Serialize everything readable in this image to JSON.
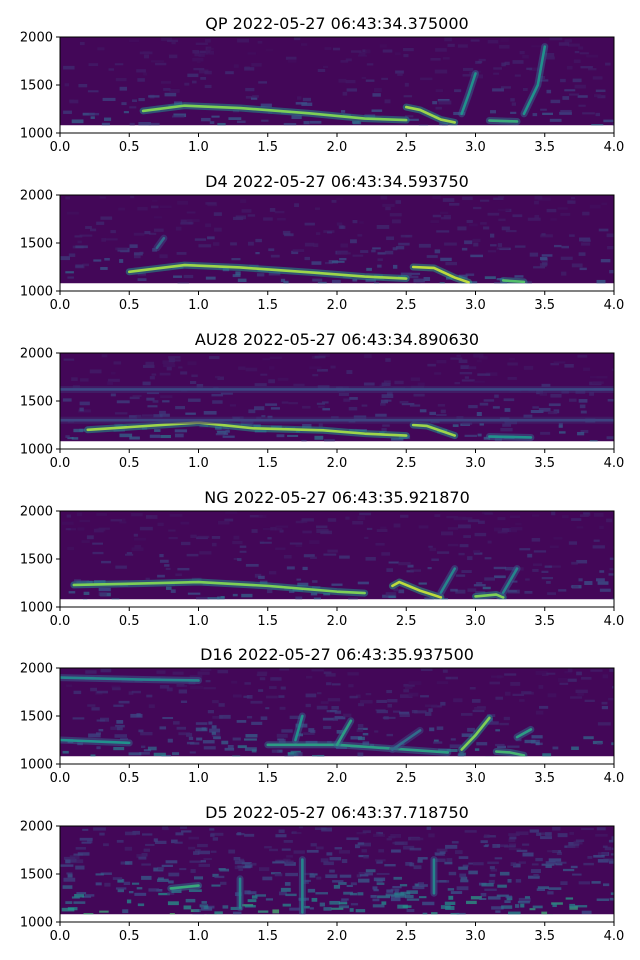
{
  "chart_data": [
    {
      "type": "heatmap",
      "title": "QP 2022-05-27 06:43:34.375000",
      "xlim": [
        0,
        4
      ],
      "ylim": [
        1000,
        2000
      ],
      "xticks": [
        "0.0",
        "0.5",
        "1.0",
        "1.5",
        "2.0",
        "2.5",
        "3.0",
        "3.5",
        "4.0"
      ],
      "yticks": [
        "1000",
        "1500",
        "2000"
      ],
      "data_ymin": 1080,
      "colormap": "viridis",
      "noise_level": 0.22,
      "tracks": [
        {
          "points": [
            [
              0.6,
              1230
            ],
            [
              0.9,
              1285
            ],
            [
              1.3,
              1260
            ],
            [
              1.8,
              1205
            ],
            [
              2.2,
              1150
            ],
            [
              2.5,
              1135
            ]
          ],
          "intensity": 0.8
        },
        {
          "points": [
            [
              2.5,
              1270
            ],
            [
              2.6,
              1240
            ],
            [
              2.75,
              1140
            ],
            [
              2.85,
              1110
            ]
          ],
          "intensity": 0.85
        },
        {
          "points": [
            [
              2.9,
              1200
            ],
            [
              2.95,
              1400
            ],
            [
              3.0,
              1620
            ]
          ],
          "intensity": 0.5
        },
        {
          "points": [
            [
              3.1,
              1130
            ],
            [
              3.3,
              1120
            ]
          ],
          "intensity": 0.6
        },
        {
          "points": [
            [
              3.35,
              1200
            ],
            [
              3.45,
              1500
            ],
            [
              3.5,
              1900
            ]
          ],
          "intensity": 0.5
        }
      ]
    },
    {
      "type": "heatmap",
      "title": "D4 2022-05-27 06:43:34.593750",
      "xlim": [
        0,
        4
      ],
      "ylim": [
        1000,
        2000
      ],
      "xticks": [
        "0.0",
        "0.5",
        "1.0",
        "1.5",
        "2.0",
        "2.5",
        "3.0",
        "3.5",
        "4.0"
      ],
      "yticks": [
        "1000",
        "1500",
        "2000"
      ],
      "data_ymin": 1080,
      "colormap": "viridis",
      "noise_level": 0.24,
      "tracks": [
        {
          "points": [
            [
              0.5,
              1200
            ],
            [
              0.9,
              1270
            ],
            [
              1.3,
              1245
            ],
            [
              1.8,
              1195
            ],
            [
              2.2,
              1150
            ],
            [
              2.5,
              1130
            ]
          ],
          "intensity": 0.85
        },
        {
          "points": [
            [
              2.55,
              1250
            ],
            [
              2.7,
              1240
            ],
            [
              2.85,
              1140
            ],
            [
              2.95,
              1090
            ]
          ],
          "intensity": 0.9
        },
        {
          "points": [
            [
              3.2,
              1110
            ],
            [
              3.35,
              1095
            ]
          ],
          "intensity": 0.7
        },
        {
          "points": [
            [
              0.7,
              1450
            ],
            [
              0.75,
              1550
            ]
          ],
          "intensity": 0.35
        }
      ]
    },
    {
      "type": "heatmap",
      "title": "AU28 2022-05-27 06:43:34.890630",
      "xlim": [
        0,
        4
      ],
      "ylim": [
        1000,
        2000
      ],
      "xticks": [
        "0.0",
        "0.5",
        "1.0",
        "1.5",
        "2.0",
        "2.5",
        "3.0",
        "3.5",
        "4.0"
      ],
      "yticks": [
        "1000",
        "1500",
        "2000"
      ],
      "data_ymin": 1080,
      "colormap": "viridis",
      "noise_level": 0.25,
      "tracks": [
        {
          "points": [
            [
              0.2,
              1200
            ],
            [
              1.0,
              1275
            ],
            [
              1.4,
              1215
            ],
            [
              1.9,
              1195
            ],
            [
              2.2,
              1160
            ],
            [
              2.5,
              1140
            ]
          ],
          "intensity": 0.85
        },
        {
          "points": [
            [
              2.55,
              1250
            ],
            [
              2.65,
              1240
            ],
            [
              2.85,
              1140
            ]
          ],
          "intensity": 0.85
        },
        {
          "points": [
            [
              3.1,
              1130
            ],
            [
              3.4,
              1120
            ]
          ],
          "intensity": 0.5
        },
        {
          "points": [
            [
              0.0,
              1620
            ],
            [
              4.0,
              1620
            ]
          ],
          "intensity": 0.22
        },
        {
          "points": [
            [
              0.0,
              1300
            ],
            [
              4.0,
              1300
            ]
          ],
          "intensity": 0.2
        }
      ]
    },
    {
      "type": "heatmap",
      "title": "NG 2022-05-27 06:43:35.921870",
      "xlim": [
        0,
        4
      ],
      "ylim": [
        1000,
        2000
      ],
      "xticks": [
        "0.0",
        "0.5",
        "1.0",
        "1.5",
        "2.0",
        "2.5",
        "3.0",
        "3.5",
        "4.0"
      ],
      "yticks": [
        "1000",
        "1500",
        "2000"
      ],
      "data_ymin": 1080,
      "colormap": "viridis",
      "noise_level": 0.24,
      "tracks": [
        {
          "points": [
            [
              0.1,
              1230
            ],
            [
              0.6,
              1245
            ],
            [
              1.0,
              1260
            ],
            [
              1.5,
              1220
            ],
            [
              2.0,
              1160
            ],
            [
              2.2,
              1145
            ]
          ],
          "intensity": 0.8
        },
        {
          "points": [
            [
              2.4,
              1220
            ],
            [
              2.45,
              1260
            ],
            [
              2.6,
              1170
            ],
            [
              2.75,
              1100
            ]
          ],
          "intensity": 0.9
        },
        {
          "points": [
            [
              2.75,
              1150
            ],
            [
              2.85,
              1400
            ]
          ],
          "intensity": 0.45
        },
        {
          "points": [
            [
              3.0,
              1110
            ],
            [
              3.15,
              1130
            ],
            [
              3.2,
              1100
            ]
          ],
          "intensity": 0.8
        },
        {
          "points": [
            [
              3.2,
              1150
            ],
            [
              3.3,
              1400
            ]
          ],
          "intensity": 0.45
        }
      ]
    },
    {
      "type": "heatmap",
      "title": "D16 2022-05-27 06:43:35.937500",
      "xlim": [
        0,
        4
      ],
      "ylim": [
        1000,
        2000
      ],
      "xticks": [
        "0.0",
        "0.5",
        "1.0",
        "1.5",
        "2.0",
        "2.5",
        "3.0",
        "3.5",
        "4.0"
      ],
      "yticks": [
        "1000",
        "1500",
        "2000"
      ],
      "data_ymin": 1080,
      "colormap": "viridis",
      "noise_level": 0.28,
      "tracks": [
        {
          "points": [
            [
              0.0,
              1900
            ],
            [
              0.6,
              1880
            ],
            [
              1.0,
              1870
            ]
          ],
          "intensity": 0.45
        },
        {
          "points": [
            [
              0.0,
              1250
            ],
            [
              0.5,
              1220
            ]
          ],
          "intensity": 0.5
        },
        {
          "points": [
            [
              1.5,
              1200
            ],
            [
              2.0,
              1200
            ],
            [
              2.5,
              1150
            ],
            [
              2.8,
              1120
            ]
          ],
          "intensity": 0.55
        },
        {
          "points": [
            [
              1.7,
              1250
            ],
            [
              1.75,
              1500
            ]
          ],
          "intensity": 0.5
        },
        {
          "points": [
            [
              2.0,
              1200
            ],
            [
              2.1,
              1450
            ]
          ],
          "intensity": 0.55
        },
        {
          "points": [
            [
              2.4,
              1150
            ],
            [
              2.6,
              1350
            ]
          ],
          "intensity": 0.35
        },
        {
          "points": [
            [
              2.9,
              1150
            ],
            [
              3.0,
              1300
            ],
            [
              3.1,
              1480
            ]
          ],
          "intensity": 0.8
        },
        {
          "points": [
            [
              3.15,
              1130
            ],
            [
              3.25,
              1120
            ],
            [
              3.35,
              1090
            ]
          ],
          "intensity": 0.65
        },
        {
          "points": [
            [
              3.3,
              1280
            ],
            [
              3.4,
              1360
            ]
          ],
          "intensity": 0.55
        }
      ]
    },
    {
      "type": "heatmap",
      "title": "D5 2022-05-27 06:43:37.718750",
      "xlim": [
        0,
        4
      ],
      "ylim": [
        1000,
        2000
      ],
      "xticks": [
        "0.0",
        "0.5",
        "1.0",
        "1.5",
        "2.0",
        "2.5",
        "3.0",
        "3.5",
        "4.0"
      ],
      "yticks": [
        "1000",
        "1500",
        "2000"
      ],
      "data_ymin": 1080,
      "colormap": "viridis",
      "noise_level": 0.42,
      "tracks": [
        {
          "points": [
            [
              0.8,
              1350
            ],
            [
              1.0,
              1380
            ]
          ],
          "intensity": 0.6
        },
        {
          "points": [
            [
              1.3,
              1150
            ],
            [
              1.3,
              1450
            ]
          ],
          "intensity": 0.45
        },
        {
          "points": [
            [
              1.75,
              1100
            ],
            [
              1.75,
              1650
            ]
          ],
          "intensity": 0.45
        },
        {
          "points": [
            [
              2.7,
              1300
            ],
            [
              2.7,
              1650
            ]
          ],
          "intensity": 0.45
        }
      ]
    }
  ]
}
